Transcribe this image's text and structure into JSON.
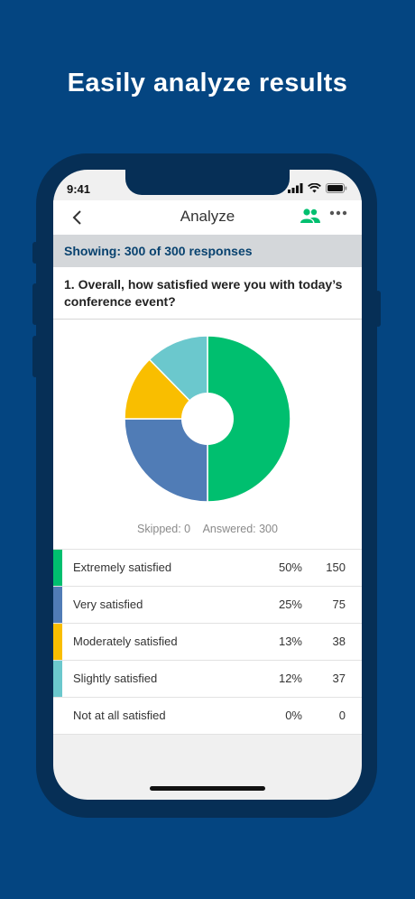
{
  "headline": "Easily analyze results",
  "status_bar": {
    "time": "9:41"
  },
  "header": {
    "title": "Analyze"
  },
  "showing": "Showing: 300 of 300 responses",
  "question": "1. Overall, how satisfied were you with today’s conference event?",
  "stats": {
    "skipped": "Skipped: 0",
    "answered": "Answered: 300"
  },
  "colors": {
    "background": "#044581",
    "accent_green": "#00bf6f",
    "blue": "#507cb6",
    "yellow": "#f9be00",
    "teal": "#6bc8cd"
  },
  "chart_data": {
    "type": "pie",
    "categories": [
      "Extremely satisfied",
      "Very satisfied",
      "Moderately satisfied",
      "Slightly satisfied",
      "Not at all satisfied"
    ],
    "values": [
      150,
      75,
      38,
      37,
      0
    ],
    "percents": [
      "50%",
      "25%",
      "13%",
      "12%",
      "0%"
    ],
    "counts": [
      "150",
      "75",
      "38",
      "37",
      "0"
    ],
    "colors": [
      "#00bf6f",
      "#507cb6",
      "#f9be00",
      "#6bc8cd",
      "#ffffff"
    ]
  }
}
